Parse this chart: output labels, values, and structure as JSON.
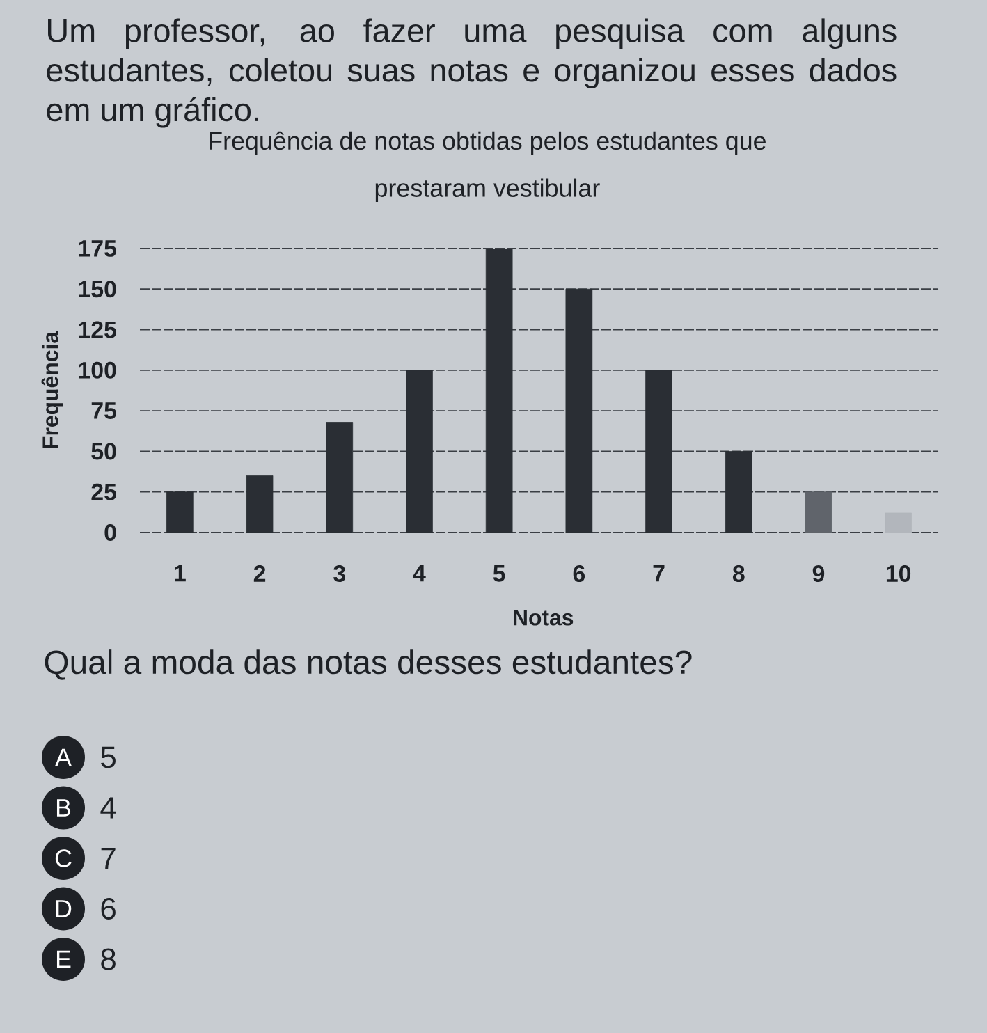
{
  "chart_data": {
    "type": "bar",
    "title": "Frequência de notas obtidas pelos estudantes que prestaram vestibular",
    "xlabel": "Notas",
    "ylabel": "Frequência",
    "categories": [
      "1",
      "2",
      "3",
      "4",
      "5",
      "6",
      "7",
      "8",
      "9",
      "10"
    ],
    "values": [
      25,
      35,
      68,
      100,
      175,
      150,
      100,
      50,
      25,
      12
    ],
    "colors": [
      "#2a2e34",
      "#2a2e34",
      "#2a2e34",
      "#2a2e34",
      "#2a2e34",
      "#2a2e34",
      "#2a2e34",
      "#2a2e34",
      "#60646b",
      "#b2b6bc"
    ],
    "ylim": [
      0,
      175
    ],
    "yticks": [
      0,
      25,
      50,
      75,
      100,
      125,
      150,
      175
    ],
    "grid": "y",
    "annotations": [
      "Um professor, ao fazer uma pesquisa com alguns estudantes, coletou suas notas e organizou esses dados em um gráfico.",
      "Qual a moda das notas desses estudantes?",
      "A",
      "5",
      "B",
      "4",
      "C",
      "7",
      "D",
      "6",
      "E",
      "8"
    ]
  }
}
